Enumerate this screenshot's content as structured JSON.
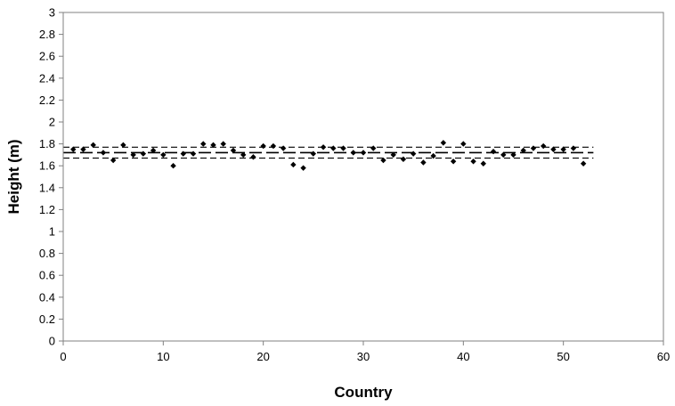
{
  "chart_data": {
    "type": "scatter",
    "title": "",
    "xlabel": "Country",
    "ylabel": "Height (m)",
    "xlim": [
      0,
      60
    ],
    "ylim": [
      0,
      3
    ],
    "x_ticks": [
      "0",
      "10",
      "20",
      "30",
      "40",
      "50",
      "60"
    ],
    "y_ticks": [
      "0",
      "0.2",
      "0.4",
      "0.6",
      "0.8",
      "1",
      "1.2",
      "1.4",
      "1.6",
      "1.8",
      "2",
      "2.2",
      "2.4",
      "2.6",
      "2.8",
      "3"
    ],
    "grid": false,
    "legend": "none",
    "marker": "diamond",
    "series": [
      {
        "x": [
          1,
          2,
          3,
          4,
          5,
          6,
          7,
          8,
          9,
          10,
          11,
          12,
          13,
          14,
          15,
          16,
          17,
          18,
          19,
          20,
          21,
          22,
          23,
          24,
          25,
          26,
          27,
          28,
          29,
          30,
          31,
          32,
          33,
          34,
          35,
          36,
          37,
          38,
          39,
          40,
          41,
          42,
          43,
          44,
          45,
          46,
          47,
          48,
          49,
          50,
          51,
          52
        ],
        "y": [
          1.75,
          1.75,
          1.79,
          1.72,
          1.65,
          1.79,
          1.7,
          1.71,
          1.74,
          1.7,
          1.6,
          1.71,
          1.71,
          1.8,
          1.79,
          1.8,
          1.74,
          1.7,
          1.68,
          1.78,
          1.78,
          1.76,
          1.61,
          1.58,
          1.71,
          1.77,
          1.76,
          1.76,
          1.72,
          1.72,
          1.76,
          1.65,
          1.7,
          1.66,
          1.71,
          1.63,
          1.69,
          1.81,
          1.64,
          1.8,
          1.64,
          1.62,
          1.73,
          1.7,
          1.7,
          1.74,
          1.76,
          1.78,
          1.75,
          1.75,
          1.76,
          1.62
        ]
      }
    ],
    "reference_lines": [
      {
        "style": "long-dash",
        "y": 1.72,
        "x_range": [
          0,
          53
        ]
      },
      {
        "style": "dash",
        "y": 1.77,
        "x_range": [
          0,
          53
        ]
      },
      {
        "style": "dash",
        "y": 1.67,
        "x_range": [
          0,
          53
        ]
      }
    ],
    "colors": {
      "markers": "#000000",
      "axes": "#808080",
      "lines": "#000000"
    }
  }
}
